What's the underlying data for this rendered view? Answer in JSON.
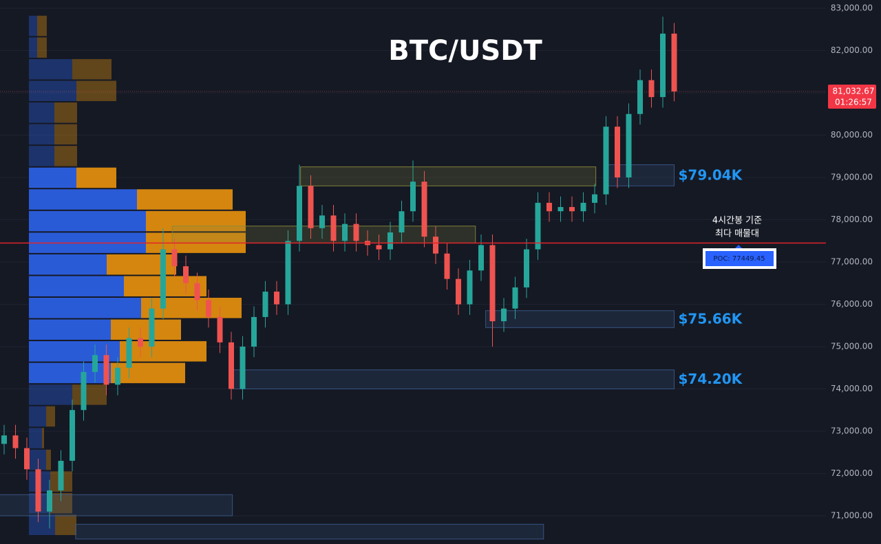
{
  "chart_data": {
    "type": "candlestick",
    "title": "BTC/USDT",
    "ylim": [
      70333,
      83195
    ],
    "yticks": [
      {
        "value": 71000,
        "label": "71,000.00"
      },
      {
        "value": 72000,
        "label": "72,000.00"
      },
      {
        "value": 73000,
        "label": "73,000.00"
      },
      {
        "value": 74000,
        "label": "74,000.00"
      },
      {
        "value": 75000,
        "label": "75,000.00"
      },
      {
        "value": 76000,
        "label": "76,000.00"
      },
      {
        "value": 77000,
        "label": "77,000.00"
      },
      {
        "value": 78000,
        "label": "78,000.00"
      },
      {
        "value": 79000,
        "label": "79,000.00"
      },
      {
        "value": 80000,
        "label": "80,000.00"
      },
      {
        "value": 81000,
        "label": "81,000.00"
      },
      {
        "value": 82000,
        "label": "82,000.00"
      },
      {
        "value": 83000,
        "label": "83,000.00"
      }
    ],
    "grid": true,
    "up_color": "#26a69a",
    "down_color": "#ef5350",
    "open": [
      72700,
      72900,
      72600,
      72100,
      71100,
      71600,
      72300,
      73500,
      74400,
      74800,
      74100,
      74500,
      75200,
      75000,
      75900,
      77300,
      76900,
      76500,
      76100,
      75700,
      75100,
      74000,
      75000,
      75700,
      76300,
      76000,
      77500,
      78800,
      77800,
      78100,
      77500,
      77900,
      77500,
      77400,
      77300,
      77700,
      78200,
      78900,
      77600,
      77200,
      76600,
      76000,
      76800,
      77400,
      75600,
      75900,
      76400,
      77300,
      78400,
      78200,
      78300,
      78200,
      78400,
      78600,
      80200,
      79000,
      80500,
      81300,
      80900,
      82400
    ],
    "high": [
      73150,
      73150,
      72850,
      72350,
      71850,
      72550,
      73750,
      74650,
      75050,
      75050,
      74750,
      75450,
      75450,
      76150,
      77800,
      77550,
      77150,
      76750,
      76350,
      75950,
      75350,
      75250,
      75950,
      76550,
      76550,
      77750,
      79300,
      79050,
      78350,
      78350,
      78150,
      78150,
      77750,
      77650,
      77950,
      78450,
      79400,
      79150,
      77850,
      77450,
      76850,
      77050,
      77650,
      77650,
      76150,
      76650,
      77550,
      78650,
      78650,
      78550,
      78550,
      78650,
      78850,
      80450,
      80450,
      80750,
      81550,
      81550,
      82800,
      82650
    ],
    "low": [
      72450,
      72350,
      71850,
      70850,
      70700,
      71350,
      72050,
      73250,
      74150,
      73850,
      73850,
      74250,
      74750,
      74750,
      75650,
      76650,
      76250,
      75850,
      75450,
      74850,
      73750,
      73750,
      74750,
      75450,
      75750,
      75750,
      77250,
      77550,
      77550,
      77250,
      77250,
      77250,
      77150,
      77050,
      77050,
      77450,
      77950,
      77350,
      76950,
      76350,
      75750,
      75750,
      76550,
      75000,
      75350,
      75650,
      76150,
      77050,
      77950,
      77950,
      77950,
      77950,
      78150,
      78350,
      78750,
      78750,
      80250,
      80650,
      80650,
      80800
    ],
    "close": [
      72900,
      72600,
      72100,
      71100,
      71600,
      72300,
      73500,
      74400,
      74800,
      74100,
      74500,
      75200,
      75000,
      75900,
      77300,
      76900,
      76500,
      76100,
      75700,
      75100,
      74000,
      75000,
      75700,
      76300,
      76000,
      77500,
      78800,
      77800,
      78100,
      77500,
      77900,
      77500,
      77400,
      77300,
      77700,
      78200,
      78900,
      77600,
      77200,
      76600,
      76000,
      76800,
      77400,
      75600,
      75900,
      76400,
      77300,
      78400,
      78200,
      78300,
      78200,
      78400,
      78600,
      80200,
      79000,
      80500,
      81300,
      80900,
      82400,
      81032.67
    ],
    "profile": {
      "bins": [
        82840,
        82327,
        81814,
        81301,
        80788,
        80275,
        79762,
        79249,
        78736,
        78223,
        77710,
        77197,
        76684,
        76171,
        75658,
        75145,
        74632,
        74119,
        73606,
        73093,
        72580,
        72067,
        71554,
        71041,
        70528
      ],
      "buy": [
        12,
        12,
        63,
        69,
        37,
        37,
        37,
        69,
        157,
        170,
        170,
        113,
        138,
        163,
        119,
        132,
        119,
        63,
        25,
        19,
        25,
        31,
        31,
        38
      ],
      "sell": [
        14,
        14,
        57,
        58,
        33,
        33,
        33,
        58,
        139,
        145,
        145,
        101,
        120,
        146,
        102,
        126,
        108,
        50,
        13,
        3,
        7,
        32,
        32,
        31
      ],
      "value_area": [
        7,
        16
      ],
      "buy_color": "#2a5bd7",
      "sell_color": "#d4860f"
    },
    "zones": [
      {
        "low": 78800,
        "high": 79250,
        "start": 26.1,
        "end": 52.1,
        "color": "#8a8a3a"
      },
      {
        "low": 78800,
        "high": 79300,
        "start": 53,
        "end": 59,
        "color": "#3a5a8a",
        "label": "$79.04K"
      },
      {
        "low": 77450,
        "high": 77850,
        "start": 14.8,
        "end": 41.5,
        "color": "#8a8a3a"
      },
      {
        "low": 75450,
        "high": 75850,
        "start": 42.4,
        "end": 59,
        "color": "#3a5a8a",
        "label": "$75.66K"
      },
      {
        "low": 74000,
        "high": 74450,
        "start": 20.2,
        "end": 59,
        "color": "#3a5a8a",
        "label": "$74.20K"
      },
      {
        "low": 71000,
        "high": 71500,
        "start": -0.4,
        "end": 20.1,
        "color": "#3a5a8a"
      },
      {
        "low": 70450,
        "high": 70800,
        "start": 6.3,
        "end": 47.5,
        "color": "#3a5a8a"
      }
    ],
    "poc": {
      "value": 77449.45,
      "label": "POC: 77449.45"
    },
    "annotation": [
      "4시간봉 기준",
      "최다 매물대"
    ],
    "last_price": {
      "value": 81032.67,
      "label": "81,032.67"
    },
    "countdown": "01:26:57"
  }
}
